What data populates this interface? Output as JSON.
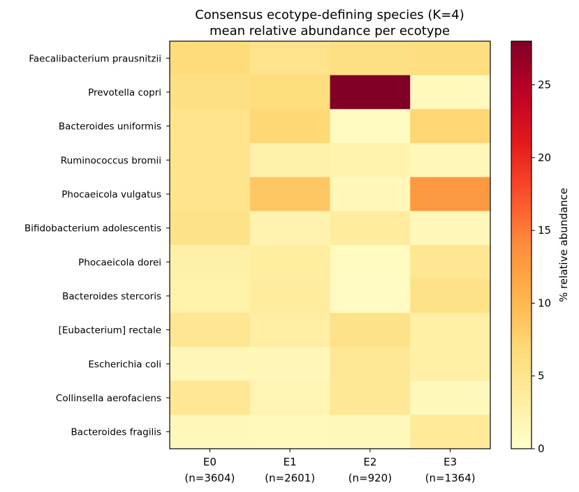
{
  "chart_data": {
    "type": "heatmap",
    "title": "Consensus ecotype-defining species (K=4)",
    "subtitle": "mean relative abundance per ecotype",
    "xlabel": "",
    "ylabel": "",
    "colorbar_label": "% relative abundance",
    "colormap": "YlOrRd",
    "vmin": 0,
    "vmax": 28,
    "colorbar_ticks": [
      0,
      5,
      10,
      15,
      20,
      25
    ],
    "columns": [
      {
        "label": "E0",
        "n": "(n=3604)"
      },
      {
        "label": "E1",
        "n": "(n=2601)"
      },
      {
        "label": "E2",
        "n": "(n=920)"
      },
      {
        "label": "E3",
        "n": "(n=1364)"
      }
    ],
    "rows": [
      "Faecalibacterium prausnitzii",
      "Prevotella copri",
      "Bacteroides uniformis",
      "Ruminococcus bromii",
      "Phocaeicola vulgatus",
      "Bifidobacterium adolescentis",
      "Phocaeicola dorei",
      "Bacteroides stercoris",
      "[Eubacterium] rectale",
      "Escherichia coli",
      "Collinsella aerofaciens",
      "Bacteroides fragilis"
    ],
    "values": [
      [
        6.5,
        5.2,
        5.8,
        6.2
      ],
      [
        5.8,
        6.3,
        28.0,
        1.2
      ],
      [
        5.1,
        7.0,
        1.0,
        7.2
      ],
      [
        5.0,
        2.7,
        2.4,
        1.5
      ],
      [
        5.0,
        8.6,
        1.4,
        12.8
      ],
      [
        5.5,
        2.3,
        3.6,
        1.4
      ],
      [
        2.9,
        3.5,
        1.0,
        4.7
      ],
      [
        2.6,
        3.6,
        0.9,
        5.5
      ],
      [
        4.7,
        3.3,
        5.4,
        3.0
      ],
      [
        1.6,
        1.7,
        4.4,
        3.0
      ],
      [
        4.6,
        2.1,
        4.4,
        1.3
      ],
      [
        1.4,
        1.2,
        1.3,
        4.0
      ]
    ]
  }
}
